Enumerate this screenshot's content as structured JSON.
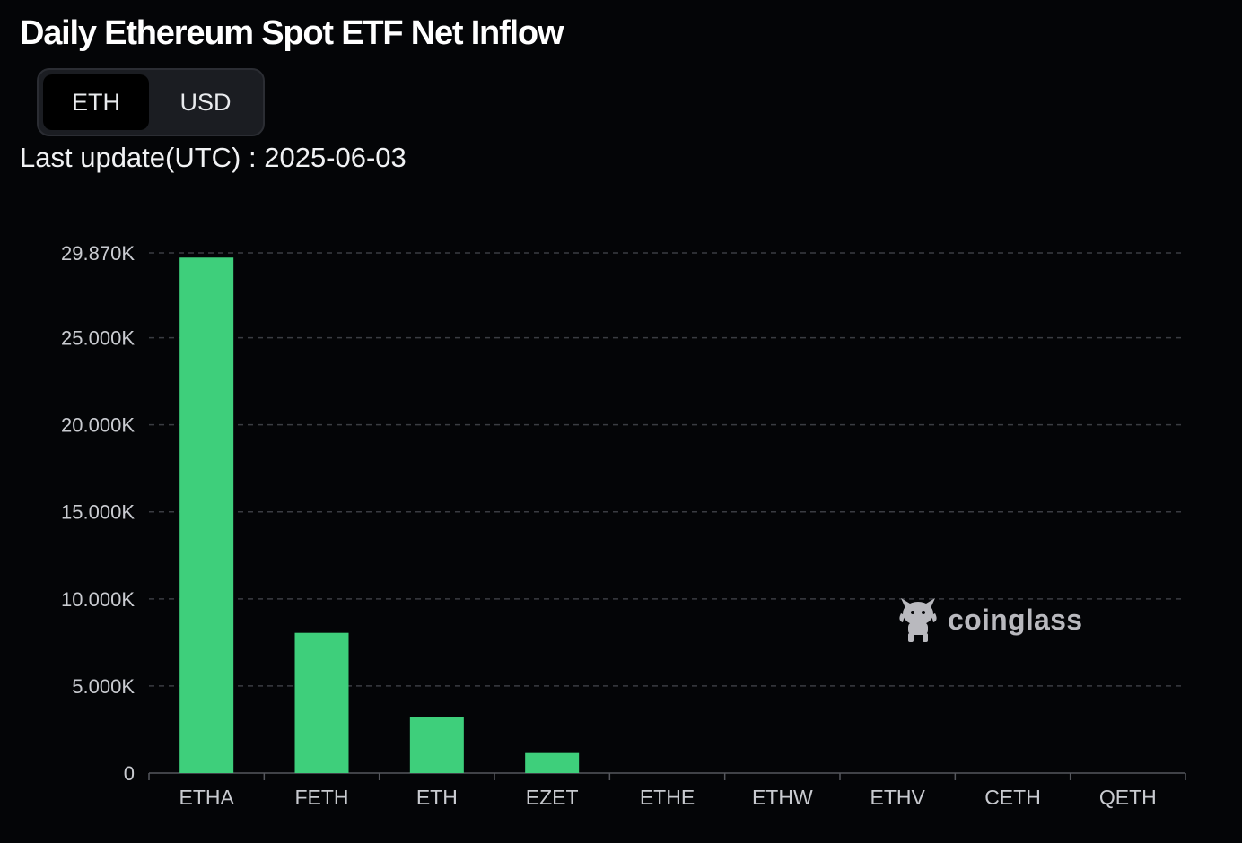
{
  "title": "Daily Ethereum Spot ETF Net Inflow",
  "toggle": {
    "options": [
      "ETH",
      "USD"
    ],
    "selected": "ETH"
  },
  "last_update": "Last update(UTC) : 2025-06-03",
  "watermark": {
    "text": "coinglass",
    "icon": "coinglass-mascot-icon"
  },
  "colors": {
    "bar": "#3ecf7b",
    "grid": "#3a3c42",
    "tick_text": "#c9cbd0",
    "background": "#040507"
  },
  "chart_data": {
    "type": "bar",
    "title": "",
    "xlabel": "",
    "ylabel": "",
    "categories": [
      "ETHA",
      "FETH",
      "ETH",
      "EZET",
      "ETHE",
      "ETHW",
      "ETHV",
      "CETH",
      "QETH"
    ],
    "values": [
      29600,
      8050,
      3200,
      1150,
      0,
      0,
      0,
      0,
      0
    ],
    "ylim": [
      0,
      29870
    ],
    "yticks": [
      0,
      5000,
      10000,
      15000,
      20000,
      25000,
      29870
    ],
    "ytick_labels": [
      "0",
      "5.000K",
      "10.000K",
      "15.000K",
      "20.000K",
      "25.000K",
      "29.870K"
    ],
    "grid": true,
    "legend": "none"
  }
}
